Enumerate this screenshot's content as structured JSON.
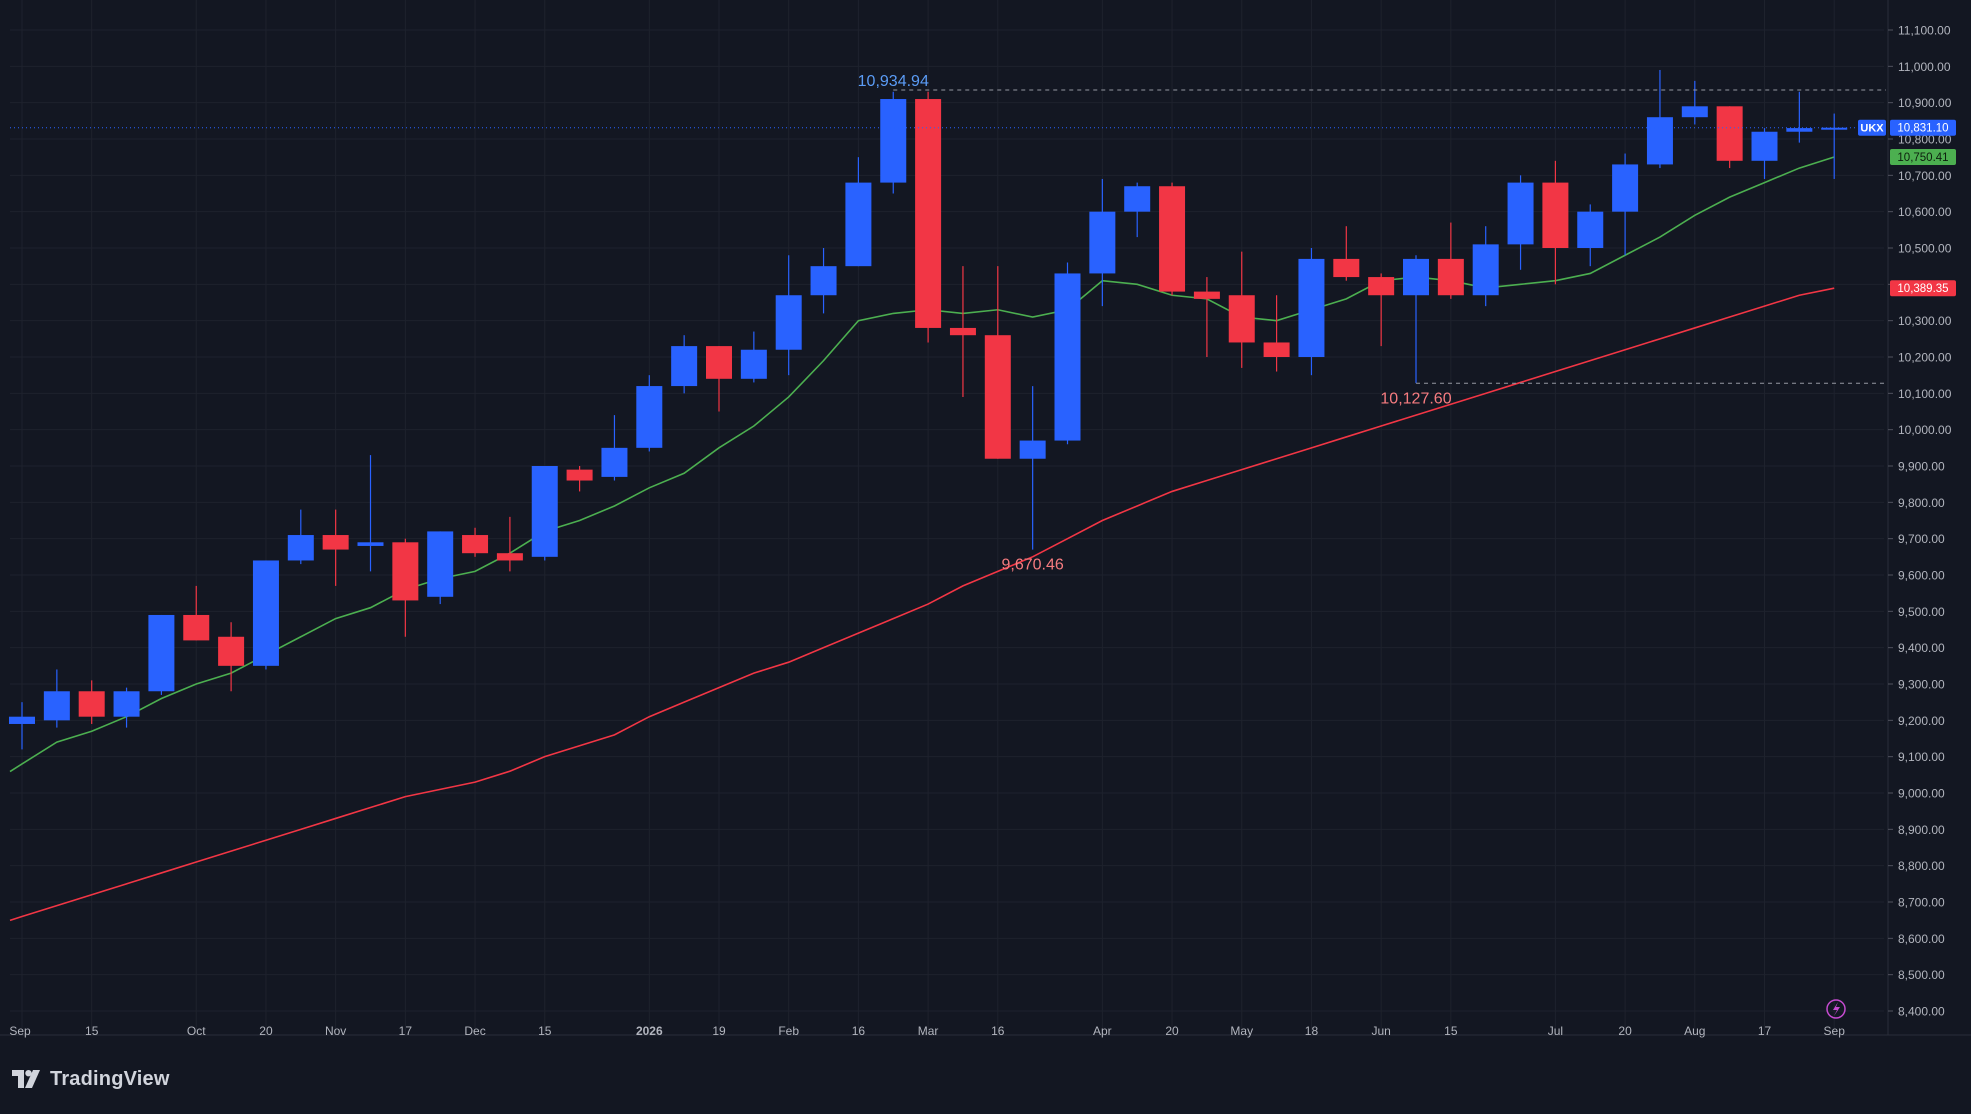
{
  "colors": {
    "background": "#131722",
    "grid": "#1e222d",
    "up": "#2962ff",
    "down": "#f23645",
    "ma_fast": "#4caf50",
    "ma_slow": "#f23645",
    "axis_text": "#b2b5be",
    "high_label": "#5b9cf6",
    "low_label": "#f77c80"
  },
  "icons": {
    "brand": "tradingview-logo-icon",
    "realtime": "lightning-icon"
  },
  "brand": {
    "name": "TradingView"
  },
  "chart_data": {
    "type": "candlestick",
    "symbol": "UKX",
    "ylim": [
      8350,
      11150
    ],
    "y_ticks": [
      8400,
      8500,
      8600,
      8700,
      8800,
      8900,
      9000,
      9100,
      9200,
      9300,
      9400,
      9500,
      9600,
      9700,
      9800,
      9900,
      10000,
      10100,
      10200,
      10300,
      10400,
      10500,
      10600,
      10700,
      10800,
      10900,
      11000,
      11100
    ],
    "y_tick_labels": [
      "8,400.00",
      "8,500.00",
      "8,600.00",
      "8,700.00",
      "8,800.00",
      "8,900.00",
      "9,000.00",
      "9,100.00",
      "9,200.00",
      "9,300.00",
      "9,400.00",
      "9,500.00",
      "9,600.00",
      "9,700.00",
      "9,800.00",
      "9,900.00",
      "10,000.00",
      "10,100.00",
      "10,200.00",
      "10,300.00",
      "10,400.00",
      "10,500.00",
      "10,600.00",
      "10,700.00",
      "10,800.00",
      "10,900.00",
      "11,000.00",
      "11,100.00"
    ],
    "x_ticks": [
      {
        "index": 0,
        "label": "Sep"
      },
      {
        "index": 2,
        "label": "15"
      },
      {
        "index": 5,
        "label": "Oct"
      },
      {
        "index": 7,
        "label": "20"
      },
      {
        "index": 9,
        "label": "Nov"
      },
      {
        "index": 11,
        "label": "17"
      },
      {
        "index": 13,
        "label": "Dec"
      },
      {
        "index": 15,
        "label": "15"
      },
      {
        "index": 18,
        "label": "2026"
      },
      {
        "index": 20,
        "label": "19"
      },
      {
        "index": 22,
        "label": "Feb"
      },
      {
        "index": 24,
        "label": "16"
      },
      {
        "index": 26,
        "label": "Mar"
      },
      {
        "index": 28,
        "label": "16"
      },
      {
        "index": 31,
        "label": "Apr"
      },
      {
        "index": 33,
        "label": "20"
      },
      {
        "index": 35,
        "label": "May"
      },
      {
        "index": 37,
        "label": "18"
      },
      {
        "index": 39,
        "label": "Jun"
      },
      {
        "index": 41,
        "label": "15"
      },
      {
        "index": 44,
        "label": "Jul"
      },
      {
        "index": 46,
        "label": "20"
      },
      {
        "index": 48,
        "label": "Aug"
      },
      {
        "index": 50,
        "label": "17"
      },
      {
        "index": 52,
        "label": "Sep"
      }
    ],
    "candles": [
      {
        "o": 9190,
        "h": 9250,
        "l": 9120,
        "c": 9210
      },
      {
        "o": 9200,
        "h": 9340,
        "l": 9180,
        "c": 9280
      },
      {
        "o": 9280,
        "h": 9310,
        "l": 9190,
        "c": 9210
      },
      {
        "o": 9210,
        "h": 9290,
        "l": 9180,
        "c": 9280
      },
      {
        "o": 9280,
        "h": 9490,
        "l": 9270,
        "c": 9490
      },
      {
        "o": 9490,
        "h": 9570,
        "l": 9420,
        "c": 9420
      },
      {
        "o": 9430,
        "h": 9470,
        "l": 9280,
        "c": 9350
      },
      {
        "o": 9350,
        "h": 9640,
        "l": 9340,
        "c": 9640
      },
      {
        "o": 9640,
        "h": 9780,
        "l": 9630,
        "c": 9710
      },
      {
        "o": 9710,
        "h": 9780,
        "l": 9570,
        "c": 9670
      },
      {
        "o": 9680,
        "h": 9930,
        "l": 9610,
        "c": 9690
      },
      {
        "o": 9690,
        "h": 9700,
        "l": 9430,
        "c": 9530
      },
      {
        "o": 9540,
        "h": 9720,
        "l": 9520,
        "c": 9720
      },
      {
        "o": 9710,
        "h": 9730,
        "l": 9650,
        "c": 9660
      },
      {
        "o": 9660,
        "h": 9760,
        "l": 9610,
        "c": 9640
      },
      {
        "o": 9650,
        "h": 9900,
        "l": 9640,
        "c": 9900
      },
      {
        "o": 9890,
        "h": 9900,
        "l": 9830,
        "c": 9860
      },
      {
        "o": 9870,
        "h": 10040,
        "l": 9860,
        "c": 9950
      },
      {
        "o": 9950,
        "h": 10150,
        "l": 9940,
        "c": 10120
      },
      {
        "o": 10120,
        "h": 10260,
        "l": 10100,
        "c": 10230
      },
      {
        "o": 10230,
        "h": 10230,
        "l": 10050,
        "c": 10140
      },
      {
        "o": 10140,
        "h": 10270,
        "l": 10130,
        "c": 10220
      },
      {
        "o": 10220,
        "h": 10480,
        "l": 10150,
        "c": 10370
      },
      {
        "o": 10370,
        "h": 10500,
        "l": 10320,
        "c": 10450
      },
      {
        "o": 10450,
        "h": 10750,
        "l": 10450,
        "c": 10680
      },
      {
        "o": 10680,
        "h": 10930,
        "l": 10650,
        "c": 10910
      },
      {
        "o": 10910,
        "h": 10930,
        "l": 10240,
        "c": 10280
      },
      {
        "o": 10280,
        "h": 10450,
        "l": 10090,
        "c": 10260
      },
      {
        "o": 10260,
        "h": 10450,
        "l": 9920,
        "c": 9920
      },
      {
        "o": 9920,
        "h": 10120,
        "l": 9670,
        "c": 9970
      },
      {
        "o": 9970,
        "h": 10460,
        "l": 9960,
        "c": 10430
      },
      {
        "o": 10430,
        "h": 10690,
        "l": 10340,
        "c": 10600
      },
      {
        "o": 10600,
        "h": 10680,
        "l": 10530,
        "c": 10670
      },
      {
        "o": 10670,
        "h": 10680,
        "l": 10370,
        "c": 10380
      },
      {
        "o": 10380,
        "h": 10420,
        "l": 10200,
        "c": 10360
      },
      {
        "o": 10370,
        "h": 10490,
        "l": 10170,
        "c": 10240
      },
      {
        "o": 10240,
        "h": 10370,
        "l": 10160,
        "c": 10200
      },
      {
        "o": 10200,
        "h": 10500,
        "l": 10150,
        "c": 10470
      },
      {
        "o": 10470,
        "h": 10560,
        "l": 10410,
        "c": 10420
      },
      {
        "o": 10420,
        "h": 10430,
        "l": 10230,
        "c": 10370
      },
      {
        "o": 10370,
        "h": 10480,
        "l": 10128,
        "c": 10470
      },
      {
        "o": 10470,
        "h": 10570,
        "l": 10360,
        "c": 10370
      },
      {
        "o": 10370,
        "h": 10560,
        "l": 10340,
        "c": 10510
      },
      {
        "o": 10510,
        "h": 10700,
        "l": 10440,
        "c": 10680
      },
      {
        "o": 10680,
        "h": 10740,
        "l": 10400,
        "c": 10500
      },
      {
        "o": 10500,
        "h": 10620,
        "l": 10450,
        "c": 10600
      },
      {
        "o": 10600,
        "h": 10760,
        "l": 10480,
        "c": 10730
      },
      {
        "o": 10730,
        "h": 10990,
        "l": 10720,
        "c": 10860
      },
      {
        "o": 10860,
        "h": 10960,
        "l": 10840,
        "c": 10890
      },
      {
        "o": 10890,
        "h": 10890,
        "l": 10720,
        "c": 10740
      },
      {
        "o": 10740,
        "h": 10830,
        "l": 10690,
        "c": 10820
      },
      {
        "o": 10820,
        "h": 10930,
        "l": 10790,
        "c": 10830
      },
      {
        "o": 10830,
        "h": 10870,
        "l": 10690,
        "c": 10831.1
      }
    ],
    "ma_fast": [
      9080,
      9140,
      9170,
      9210,
      9260,
      9300,
      9330,
      9380,
      9430,
      9480,
      9510,
      9560,
      9590,
      9610,
      9660,
      9720,
      9750,
      9790,
      9840,
      9880,
      9950,
      10010,
      10090,
      10190,
      10300,
      10320,
      10330,
      10320,
      10330,
      10310,
      10330,
      10410,
      10400,
      10370,
      10360,
      10310,
      10300,
      10330,
      10360,
      10410,
      10420,
      10410,
      10390,
      10400,
      10410,
      10430,
      10480,
      10530,
      10590,
      10640,
      10680,
      10720,
      10750.41
    ],
    "ma_slow": [
      8660,
      8690,
      8720,
      8750,
      8780,
      8810,
      8840,
      8870,
      8900,
      8930,
      8960,
      8990,
      9010,
      9030,
      9060,
      9100,
      9130,
      9160,
      9210,
      9250,
      9290,
      9330,
      9360,
      9400,
      9440,
      9480,
      9520,
      9570,
      9610,
      9650,
      9700,
      9750,
      9790,
      9830,
      9860,
      9890,
      9920,
      9950,
      9980,
      10010,
      10040,
      10070,
      10100,
      10130,
      10160,
      10190,
      10220,
      10250,
      10280,
      10310,
      10340,
      10370,
      10389.35
    ],
    "annotations": [
      {
        "kind": "high",
        "index": 25,
        "value": 10934.94,
        "text": "10,934.94"
      },
      {
        "kind": "low",
        "index": 29,
        "value": 9670.46,
        "text": "9,670.46"
      },
      {
        "kind": "low",
        "index": 40,
        "value": 10127.6,
        "text": "10,127.60"
      }
    ],
    "price_tags": [
      {
        "label": "UKX",
        "value": 10831.1,
        "text": "10,831.10",
        "color": "#2962ff"
      },
      {
        "label": "",
        "value": 10750.41,
        "text": "10,750.41",
        "color": "#4caf50"
      },
      {
        "label": "",
        "value": 10389.35,
        "text": "10,389.35",
        "color": "#f23645"
      }
    ],
    "grid": true,
    "legend": "none"
  }
}
